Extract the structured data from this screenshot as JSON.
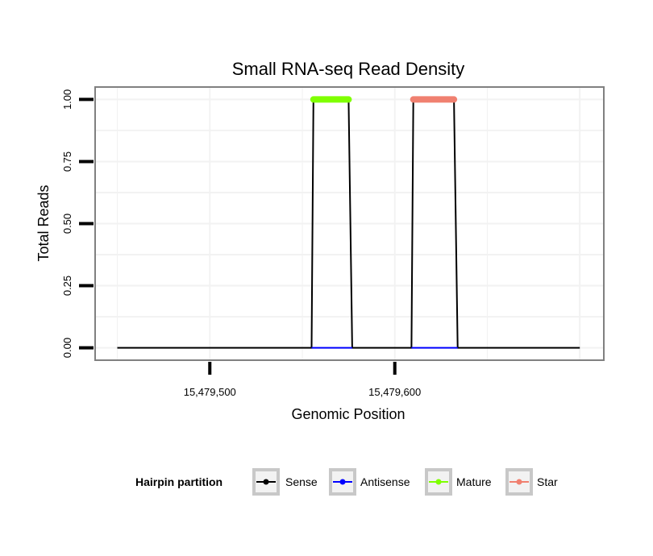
{
  "chart_data": {
    "type": "line",
    "title": "Small RNA-seq Read Density",
    "xlabel": "Genomic Position",
    "ylabel": "Total Reads",
    "xlim": [
      15479438,
      15479713
    ],
    "ylim": [
      -0.05,
      1.05
    ],
    "x_ticks": [
      {
        "value": 15479500,
        "label": "15,479,500"
      },
      {
        "value": 15479600,
        "label": "15,479,600"
      }
    ],
    "y_ticks": [
      {
        "value": 0.0,
        "label": "0.00"
      },
      {
        "value": 0.25,
        "label": "0.25"
      },
      {
        "value": 0.5,
        "label": "0.50"
      },
      {
        "value": 0.75,
        "label": "0.75"
      },
      {
        "value": 1.0,
        "label": "1.00"
      }
    ],
    "grid": true,
    "legend_position": "bottom",
    "legend_title": "Hairpin partition",
    "series": [
      {
        "name": "Sense",
        "color": "#000000",
        "x": [
          15479450,
          15479555,
          15479556,
          15479575,
          15479577,
          15479609,
          15479610,
          15479632,
          15479634,
          15479700
        ],
        "y": [
          0,
          0,
          1,
          1,
          0,
          0,
          1,
          1,
          0,
          0
        ]
      },
      {
        "name": "Antisense",
        "color": "#0000ff",
        "x": [
          15479450,
          15479700
        ],
        "y": [
          0,
          0
        ]
      },
      {
        "name": "Mature",
        "color": "#7fff00",
        "x": [
          15479556,
          15479575
        ],
        "y": [
          1,
          1
        ]
      },
      {
        "name": "Star",
        "color": "#f08070",
        "x": [
          15479610,
          15479632
        ],
        "y": [
          1,
          1
        ]
      }
    ]
  }
}
